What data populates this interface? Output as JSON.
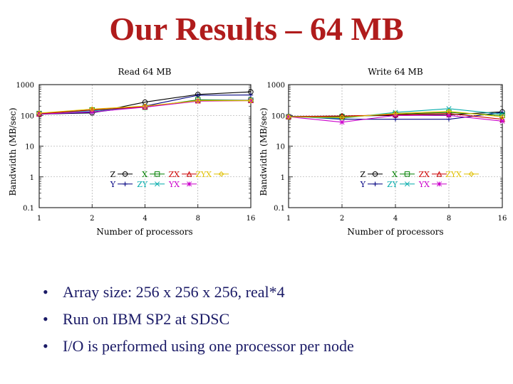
{
  "slide": {
    "title": "Our Results – 64 MB",
    "bullets": [
      "Array size: 256 x 256 x 256, real*4",
      "Run on IBM SP2 at SDSC",
      "I/O is performed using one processor per node"
    ]
  },
  "chart_data": [
    {
      "type": "line",
      "title": "Read  64 MB",
      "xlabel": "Number of processors",
      "ylabel": "Bandwidth  (MB/sec)",
      "x": [
        1,
        2,
        4,
        8,
        16
      ],
      "x_scale": "log2",
      "y_scale": "log10",
      "ylim": [
        0.1,
        1000
      ],
      "y_ticks": [
        "1000",
        "100",
        "10",
        "1",
        "0.1"
      ],
      "legend_position": "lower-right",
      "series": [
        {
          "name": "Z",
          "color": "#000000",
          "marker": "circle",
          "values": [
            110,
            120,
            270,
            480,
            580
          ]
        },
        {
          "name": "Y",
          "color": "#000080",
          "marker": "plus",
          "values": [
            110,
            125,
            200,
            450,
            460
          ]
        },
        {
          "name": "X",
          "color": "#008000",
          "marker": "square",
          "values": [
            115,
            150,
            185,
            320,
            310
          ]
        },
        {
          "name": "ZY",
          "color": "#00aaaa",
          "marker": "x",
          "values": [
            115,
            140,
            190,
            300,
            310
          ]
        },
        {
          "name": "ZX",
          "color": "#cc0000",
          "marker": "triangle",
          "values": [
            112,
            150,
            190,
            300,
            305
          ]
        },
        {
          "name": "YX",
          "color": "#cc00cc",
          "marker": "star",
          "values": [
            110,
            130,
            185,
            290,
            300
          ]
        },
        {
          "name": "ZYX",
          "color": "#e0c000",
          "marker": "diamond",
          "values": [
            118,
            160,
            200,
            300,
            300
          ]
        }
      ]
    },
    {
      "type": "line",
      "title": "Write  64 MB",
      "xlabel": "Number of processors",
      "ylabel": "Bandwidth  (MB/sec)",
      "x": [
        1,
        2,
        4,
        8,
        16
      ],
      "x_scale": "log2",
      "y_scale": "log10",
      "ylim": [
        0.1,
        1000
      ],
      "y_ticks": [
        "1000",
        "100",
        "10",
        "1",
        "0.1"
      ],
      "legend_position": "lower-right",
      "series": [
        {
          "name": "Z",
          "color": "#000000",
          "marker": "circle",
          "values": [
            92,
            95,
            100,
            105,
            130
          ]
        },
        {
          "name": "Y",
          "color": "#000080",
          "marker": "plus",
          "values": [
            95,
            75,
            75,
            75,
            125
          ]
        },
        {
          "name": "X",
          "color": "#008000",
          "marker": "square",
          "values": [
            90,
            90,
            110,
            125,
            100
          ]
        },
        {
          "name": "ZY",
          "color": "#00aaaa",
          "marker": "x",
          "values": [
            90,
            80,
            125,
            165,
            110
          ]
        },
        {
          "name": "ZX",
          "color": "#cc0000",
          "marker": "triangle",
          "values": [
            90,
            95,
            105,
            115,
            75
          ]
        },
        {
          "name": "YX",
          "color": "#cc00cc",
          "marker": "star",
          "values": [
            90,
            60,
            100,
            100,
            65
          ]
        },
        {
          "name": "ZYX",
          "color": "#e0c000",
          "marker": "diamond",
          "values": [
            90,
            85,
            115,
            135,
            90
          ]
        }
      ]
    }
  ]
}
